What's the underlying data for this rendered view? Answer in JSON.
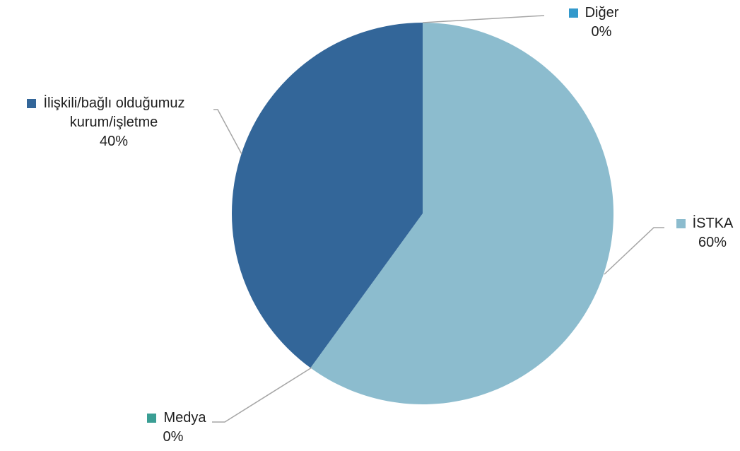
{
  "chart_data": {
    "type": "pie",
    "title": "",
    "slices": [
      {
        "label": "İSTKA",
        "value": 60,
        "pct_text": "60%",
        "color": "#8CBCCE"
      },
      {
        "label": "Medya",
        "value": 0,
        "pct_text": "0%",
        "color": "#3A9E94"
      },
      {
        "label": "İlişkili/bağlı olduğumuz kurum/işletme",
        "label_line1": "İlişkili/bağlı olduğumuz",
        "label_line2": "kurum/işletme",
        "value": 40,
        "pct_text": "40%",
        "color": "#336699"
      },
      {
        "label": "Diğer",
        "value": 0,
        "pct_text": "0%",
        "color": "#3399CC"
      }
    ],
    "legend": "none (data labels with leader lines)"
  }
}
